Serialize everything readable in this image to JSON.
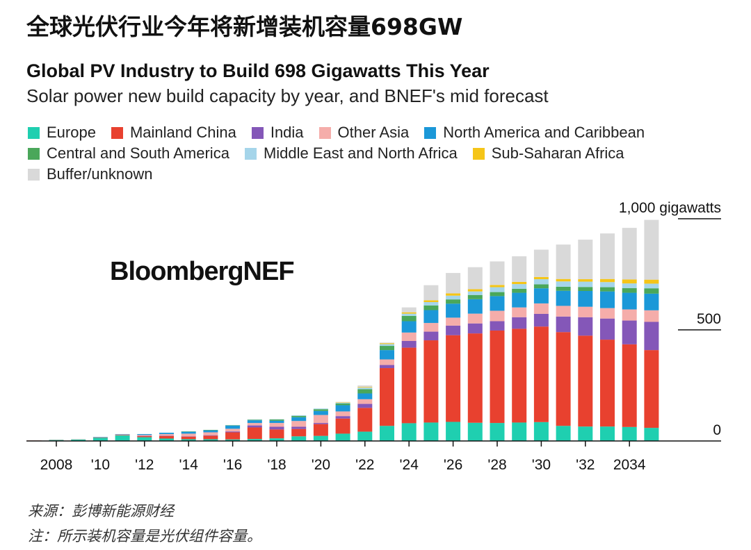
{
  "header": {
    "cn_title": "全球光伏行业今年将新增装机容量698GW"
  },
  "logo_text": "BloombergNEF",
  "footer": {
    "source": "来源：彭博新能源财经",
    "note": "注：所示装机容量是光伏组件容量。"
  },
  "chart_data": {
    "type": "bar",
    "stacked": true,
    "title": "Global PV Industry to Build 698 Gigawatts This Year",
    "subtitle": "Solar power new build capacity by year, and BNEF's mid forecast",
    "xlabel": "",
    "ylabel": "gigawatts",
    "ylim": [
      0,
      1000
    ],
    "y_ticks": [
      {
        "value": 1000,
        "label": "1,000 gigawatts"
      },
      {
        "value": 500,
        "label": "500"
      },
      {
        "value": 0,
        "label": "0"
      }
    ],
    "x_tick_labels": [
      {
        "year": 2008,
        "label": "2008"
      },
      {
        "year": 2010,
        "label": "'10"
      },
      {
        "year": 2012,
        "label": "'12"
      },
      {
        "year": 2014,
        "label": "'14"
      },
      {
        "year": 2016,
        "label": "'16"
      },
      {
        "year": 2018,
        "label": "'18"
      },
      {
        "year": 2020,
        "label": "'20"
      },
      {
        "year": 2022,
        "label": "'22"
      },
      {
        "year": 2024,
        "label": "'24"
      },
      {
        "year": 2026,
        "label": "'26"
      },
      {
        "year": 2028,
        "label": "'28"
      },
      {
        "year": 2030,
        "label": "'30"
      },
      {
        "year": 2032,
        "label": "'32"
      },
      {
        "year": 2034,
        "label": "2034"
      }
    ],
    "grid": false,
    "legend_position": "top-left",
    "categories": [
      2007,
      2008,
      2009,
      2010,
      2011,
      2012,
      2013,
      2014,
      2015,
      2016,
      2017,
      2018,
      2019,
      2020,
      2021,
      2022,
      2023,
      2024,
      2025,
      2026,
      2027,
      2028,
      2029,
      2030,
      2031,
      2032,
      2033,
      2034,
      2035
    ],
    "series": [
      {
        "name": "Europe",
        "color": "#1fcfb0",
        "values": [
          2,
          5,
          7,
          15,
          25,
          17,
          11,
          8,
          8,
          7,
          9,
          12,
          21,
          23,
          33,
          42,
          68,
          80,
          83,
          86,
          82,
          81,
          83,
          85,
          68,
          65,
          65,
          63,
          59
        ]
      },
      {
        "name": "Mainland China",
        "color": "#e8412f",
        "values": [
          0,
          0,
          0,
          1,
          2,
          5,
          12,
          12,
          16,
          32,
          52,
          40,
          33,
          53,
          68,
          107,
          260,
          340,
          370,
          390,
          402,
          416,
          422,
          430,
          422,
          409,
          391,
          372,
          350
        ]
      },
      {
        "name": "India",
        "color": "#8457b8",
        "values": [
          0,
          0,
          0,
          0,
          0,
          1,
          1,
          1,
          2,
          4,
          9,
          12,
          10,
          5,
          11,
          18,
          14,
          30,
          39,
          43,
          45,
          42,
          52,
          57,
          70,
          83,
          95,
          107,
          127
        ]
      },
      {
        "name": "Other Asia",
        "color": "#f5adaa",
        "values": [
          1,
          1,
          1,
          1,
          2,
          4,
          7,
          12,
          13,
          12,
          11,
          17,
          26,
          36,
          21,
          21,
          25,
          38,
          39,
          36,
          44,
          47,
          44,
          47,
          48,
          47,
          47,
          50,
          52
        ]
      },
      {
        "name": "North America and Caribbean",
        "color": "#1b98d8",
        "values": [
          0,
          0,
          0,
          1,
          2,
          4,
          6,
          9,
          9,
          14,
          12,
          10,
          17,
          18,
          28,
          26,
          42,
          51,
          58,
          63,
          65,
          66,
          66,
          68,
          68,
          71,
          75,
          75,
          75
        ]
      },
      {
        "name": "Central and South America",
        "color": "#4aa75a",
        "values": [
          0,
          0,
          0,
          0,
          0,
          0,
          0,
          1,
          2,
          2,
          3,
          6,
          6,
          8,
          8,
          19,
          19,
          24,
          21,
          19,
          19,
          18,
          18,
          18,
          18,
          18,
          19,
          21,
          24
        ]
      },
      {
        "name": "Middle East and North Africa",
        "color": "#a5d5ea",
        "values": [
          0,
          0,
          0,
          0,
          0,
          0,
          0,
          0,
          0,
          1,
          1,
          1,
          3,
          3,
          3,
          7,
          8,
          10,
          15,
          17,
          16,
          22,
          21,
          23,
          24,
          24,
          23,
          21,
          21
        ]
      },
      {
        "name": "Sub-Saharan Africa",
        "color": "#f5c518",
        "values": [
          0,
          0,
          0,
          0,
          0,
          0,
          0,
          0,
          0,
          0,
          0,
          0,
          0,
          0,
          2,
          3,
          4,
          6,
          8,
          10,
          10,
          10,
          10,
          10,
          11,
          11,
          14,
          18,
          18
        ]
      },
      {
        "name": "Buffer/unknown",
        "color": "#d9d9d9",
        "values": [
          0,
          0,
          0,
          0,
          0,
          0,
          0,
          0,
          0,
          0,
          0,
          0,
          0,
          0,
          2,
          7,
          3,
          22,
          68,
          92,
          99,
          106,
          115,
          123,
          155,
          178,
          205,
          232,
          269
        ]
      }
    ]
  }
}
